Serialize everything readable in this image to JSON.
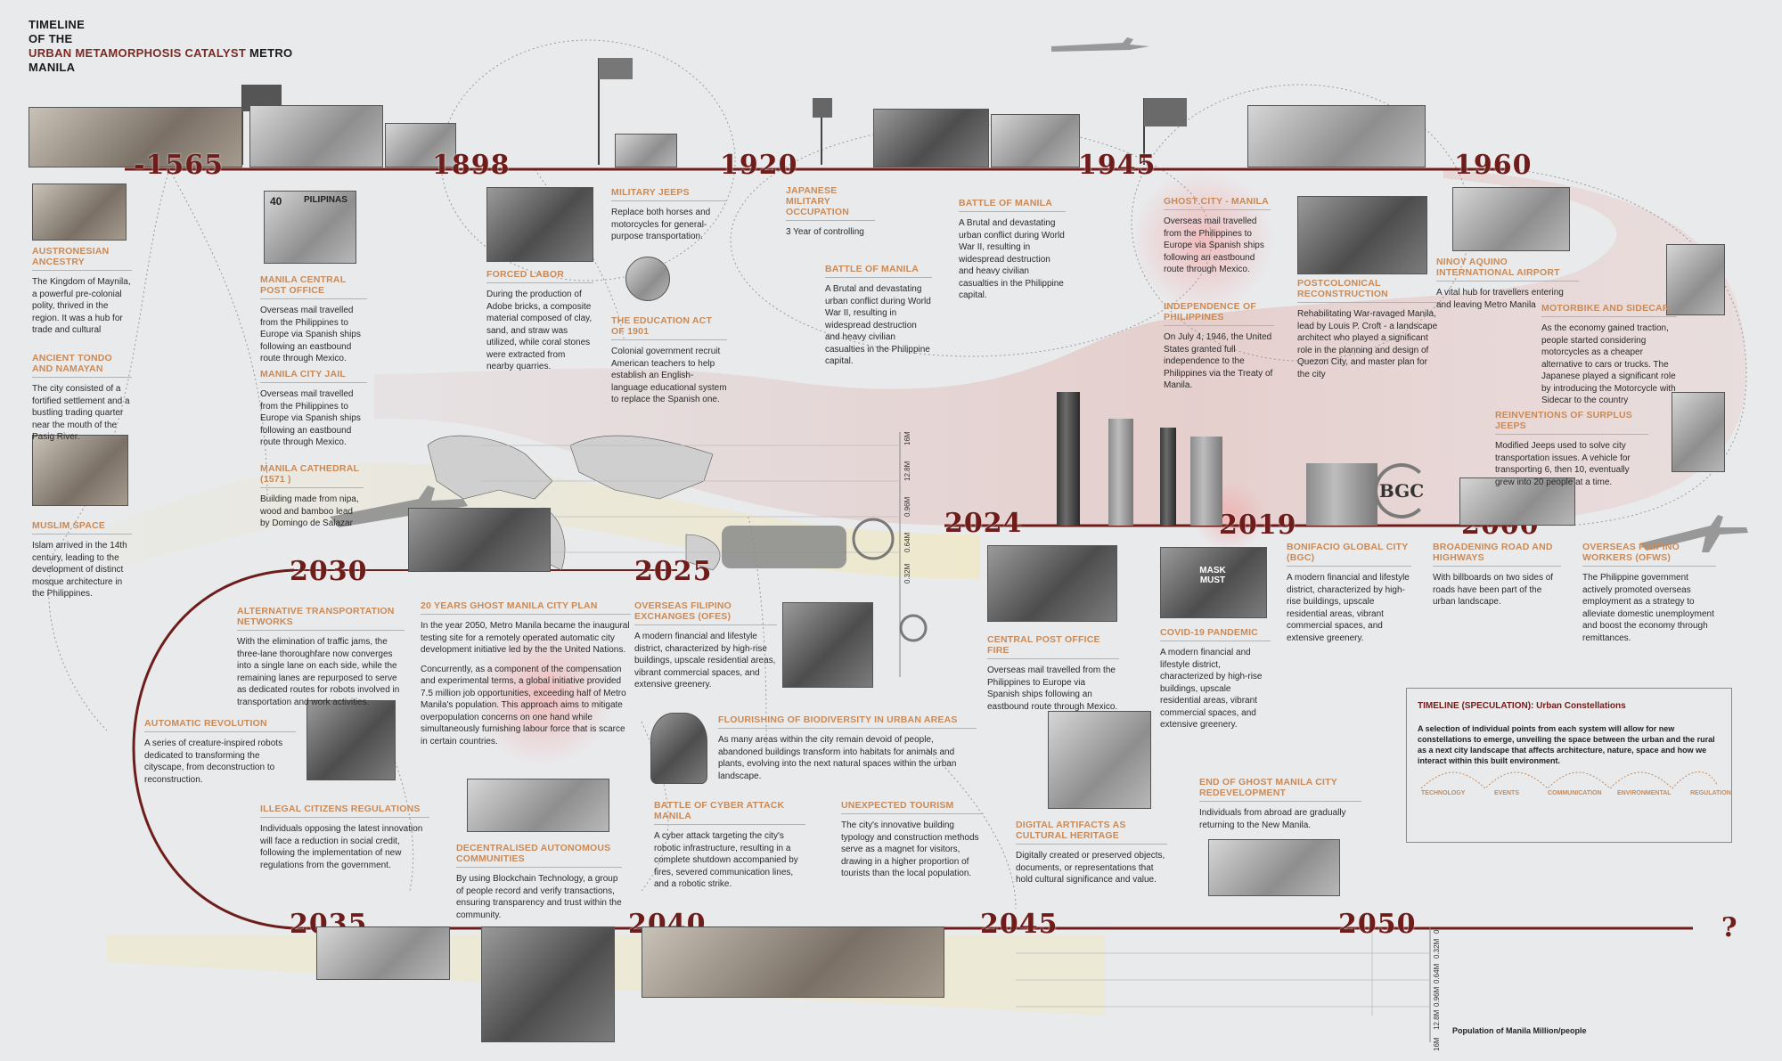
{
  "title": {
    "line1": "TIMELINE",
    "line2": "OF THE",
    "line3_accent": "URBAN METAMORPHOSIS CATALYST",
    "line3_rest": " METRO",
    "line4": "MANILA"
  },
  "years": {
    "y1565": "-1565",
    "y1898": "1898",
    "y1920": "1920",
    "y1945": "1945",
    "y1960": "1960",
    "y2000": "2000",
    "y2019": "2019",
    "y2024": "2024",
    "y2025": "2025",
    "y2030": "2030",
    "y2035": "2035",
    "y2040": "2040",
    "y2045": "2045",
    "y2050": "2050",
    "unknown": "?"
  },
  "events": {
    "austronesian": {
      "title": "AUSTRONESIAN ANCESTRY",
      "body": "The Kingdom of Maynila, a powerful pre-colonial polity, thrived in the region. It was a hub for trade and cultural"
    },
    "tondo": {
      "title": "ANCIENT TONDO AND NAMAYAN",
      "body": "The city consisted of a fortified settlement and a bustling trading quarter near the mouth of the Pasig River."
    },
    "muslim": {
      "title": "MUSLIM SPACE",
      "body": "Islam arrived in the 14th century, leading to the development of distinct mosque architecture in the Philippines."
    },
    "post_office": {
      "title": "MANILA CENTRAL POST OFFICE",
      "body": "Overseas mail travelled from the Philippines to Europe via Spanish ships following an eastbound route through Mexico."
    },
    "city_jail": {
      "title": "MANILA CITY JAIL",
      "body": "Overseas mail travelled from the Philippines to Europe via Spanish ships following an eastbound route through Mexico."
    },
    "cathedral": {
      "title": "MANILA CATHEDRAL (1571 )",
      "body": "Building made from nipa, wood and bamboo lead by Domingo de Salazar"
    },
    "forced_labor": {
      "title": "FORCED LABOR",
      "body": "During the production of Adobe bricks, a composite material composed of clay, sand, and straw was utilized, while coral stones were extracted from nearby quarries."
    },
    "military_jeeps": {
      "title": "MILITARY JEEPS",
      "body": "Replace both horses and motorcycles for general-purpose transportation."
    },
    "education_act": {
      "title": "THE EDUCATION ACT OF 1901",
      "body": "Colonial government recruit American teachers to help establish an English-language educational system to replace the Spanish one."
    },
    "japanese": {
      "title": "JAPANESE MILITARY OCCUPATION",
      "body": "3 Year of controlling"
    },
    "battle1": {
      "title": "BATTLE OF MANILA",
      "body": "A Brutal and devastating urban conflict during World War II, resulting in widespread destruction and heavy civilian casualties in the Philippine capital."
    },
    "battle2": {
      "title": "BATTLE OF MANILA",
      "body": "A Brutal and devastating urban conflict during World War II, resulting in widespread destruction and heavy civilian casualties in the Philippine capital."
    },
    "ghost_city": {
      "title": "GHOST CITY - MANILA",
      "body": "Overseas mail travelled from the Philippines to Europe via Spanish ships following an eastbound route through Mexico."
    },
    "independence": {
      "title": "INDEPENDENCE OF PHILIPPINES",
      "body": "On July 4, 1946, the United States granted full independence to the Philippines via the Treaty of Manila."
    },
    "postcolonial": {
      "title": "POSTCOLONICAL RECONSTRUCTION",
      "body": "Rehabilitating War-ravaged Manila, lead by Louis P. Croft - a landscape architect who played a significant role in the planning and design of Quezon City, and master plan for the city"
    },
    "ninoy": {
      "title": "NINOY AQUINO INTERNATIONAL AIRPORT",
      "body": "A vital hub for travellers entering and leaving Metro Manila"
    },
    "motorbike": {
      "title": "MOTORBIKE AND SIDECAR",
      "body": "As the economy gained traction, people started considering motorcycles as a cheaper alternative to cars or trucks. The Japanese played a significant role by introducing the Motorcycle with Sidecar to the country"
    },
    "surplus_jeeps": {
      "title": "REINVENTIONS OF SURPLUS JEEPS",
      "body": "Modified Jeeps used to solve city transportation issues. A vehicle for transporting 6, then 10, eventually grew into 20 people at a time."
    },
    "bgc": {
      "title": "BONIFACIO GLOBAL CITY (BGC)",
      "body": "A modern financial and lifestyle district, characterized by high-rise buildings, upscale residential areas, vibrant commercial spaces, and extensive greenery."
    },
    "broadening": {
      "title": "BROADENING ROAD AND HIGHWAYS",
      "body": "With billboards on two sides of roads have been part of the urban landscape."
    },
    "ofws": {
      "title": "OVERSEAS FILIPINO WORKERS (OFWS)",
      "body": "The Philippine government actively promoted overseas employment as a strategy to alleviate domestic unemployment and boost the economy through remittances."
    },
    "post_fire": {
      "title": "CENTRAL POST OFFICE FIRE",
      "body": "Overseas mail travelled from the Philippines to Europe via Spanish ships following an eastbound route through Mexico."
    },
    "covid": {
      "title": "COVID-19 PANDEMIC",
      "body": "A modern financial and lifestyle district, characterized by high-rise buildings, upscale residential areas, vibrant commercial spaces, and extensive greenery."
    },
    "ofes": {
      "title": "OVERSEAS FILIPINO EXCHANGES (OFES)",
      "body": "A modern financial and lifestyle district, characterized by high-rise buildings, upscale residential areas, vibrant commercial spaces, and extensive greenery."
    },
    "ghost_plan": {
      "title": "20 YEARS GHOST MANILA CITY PLAN",
      "body": "In the year 2050, Metro Manila became the inaugural testing site for a remotely operated automatic city development initiative led by the the United Nations.",
      "body2": "Concurrently, as a component of the compensation and experimental terms, a global initiative provided 7.5 million job opportunities, exceeding half of Metro Manila's population. This approach aims to mitigate overpopulation concerns on one hand while simultaneously furnishing labour force that is scarce in certain countries."
    },
    "alt_transport": {
      "title": "ALTERNATIVE TRANSPORTATION NETWORKS",
      "body": "With the elimination of traffic jams, the three-lane thoroughfare now converges into a single lane on each side, while the remaining lanes are repurposed to serve as dedicated routes for robots involved in transportation and work activities."
    },
    "auto_rev": {
      "title": "AUTOMATIC REVOLUTION",
      "body": "A series of creature-inspired robots dedicated to transforming the cityscape, from deconstruction to reconstruction."
    },
    "illegal": {
      "title": "ILLEGAL CITIZENS REGULATIONS",
      "body": "Individuals opposing the latest innovation will face a reduction in social credit, following the implementation of new regulations from the government."
    },
    "decentralised": {
      "title": "DECENTRALISED AUTONOMOUS COMMUNITIES",
      "body": "By using Blockchain Technology, a group of people record and verify transactions, ensuring transparency and trust within the community."
    },
    "biodiversity": {
      "title": "FLOURISHING OF BIODIVERSITY IN URBAN AREAS",
      "body": "As many areas within the city remain devoid of people, abandoned buildings transform into habitats for animals and plants, evolving into the next natural spaces within the urban landscape."
    },
    "cyber": {
      "title": "BATTLE OF CYBER ATTACK MANILA",
      "body": "A cyber attack targeting the city's robotic infrastructure, resulting in a complete shutdown accompanied by fires, severed communication lines, and a robotic strike."
    },
    "tourism": {
      "title": "UNEXPECTED TOURISM",
      "body": "The city's innovative building typology and construction methods serve as a magnet for visitors, drawing in a higher proportion of tourists than the local population."
    },
    "digital": {
      "title": "DIGITAL ARTIFACTS AS CULTURAL HERITAGE",
      "body": "Digitally created or preserved objects, documents, or representations that hold cultural significance and value."
    },
    "end_ghost": {
      "title": "END OF GHOST MANILA CITY REDEVELOPMENT",
      "body": "Individuals from abroad are gradually returning to the New Manila."
    }
  },
  "speculation": {
    "title": "TIMELINE (SPECULATION): Urban Constellations",
    "body": "A selection of individual points from each system will allow for new constellations to emerge, unveiling the space between the urban and the rural as a next city landscape that affects architecture, nature, space and how we interact within this built environment.",
    "categories": [
      "TECHNOLOGY",
      "EVENTS",
      "COMMUNICATION",
      "ENVIRONMENTAL",
      "REGULATION"
    ]
  },
  "population": {
    "label": "Population of Manila Million/people",
    "ticks_mid": [
      "16M",
      "12.8M",
      "0.96M",
      "0.64M",
      "0.32M"
    ],
    "ticks_bottom": [
      "0",
      "0.32M",
      "0.64M",
      "0.96M",
      "12.8M",
      "16M"
    ]
  },
  "misc": {
    "bgc_logo": "BGC",
    "stamp_value": "40",
    "stamp_country": "PILIPINAS",
    "mask_sign": "MASK MUST"
  },
  "colors": {
    "accent": "#6f1d1b",
    "event_title": "#c98a57",
    "background": "#e9eaec"
  }
}
